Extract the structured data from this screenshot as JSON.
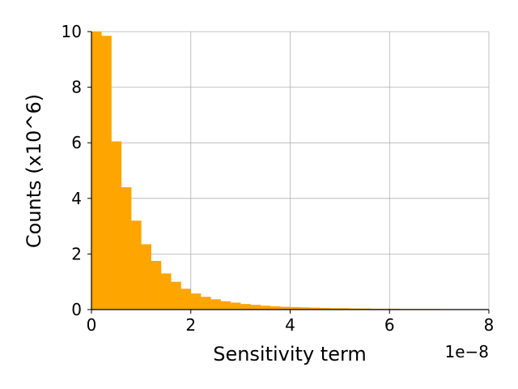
{
  "chart_data": {
    "type": "bar",
    "title": "",
    "xlabel": "Sensitivity term",
    "ylabel": "Counts (x10^6)",
    "x_offset_label": "1e−8",
    "xlim": [
      0,
      8
    ],
    "ylim": [
      0,
      10
    ],
    "x_ticks": [
      0,
      2,
      4,
      6,
      8
    ],
    "y_ticks": [
      0,
      2,
      4,
      6,
      8,
      10
    ],
    "x_tick_labels": [
      "0",
      "2",
      "4",
      "6",
      "8"
    ],
    "y_tick_labels": [
      "0",
      "2",
      "4",
      "6",
      "8",
      "10"
    ],
    "grid": true,
    "bar_color": "#FFA500",
    "bin_width": 0.2,
    "bin_starts": [
      0.0,
      0.2,
      0.4,
      0.6,
      0.8,
      1.0,
      1.2,
      1.4,
      1.6,
      1.8,
      2.0,
      2.2,
      2.4,
      2.6,
      2.8,
      3.0,
      3.2,
      3.4,
      3.6,
      3.8,
      4.0,
      4.2,
      4.4,
      4.6,
      4.8,
      5.0,
      5.2,
      5.4,
      5.6,
      5.8,
      6.0,
      6.2,
      6.4,
      6.6,
      6.8,
      7.0,
      7.2
    ],
    "values": [
      10.0,
      9.85,
      6.05,
      4.4,
      3.2,
      2.35,
      1.75,
      1.3,
      1.0,
      0.75,
      0.58,
      0.46,
      0.37,
      0.3,
      0.25,
      0.2,
      0.17,
      0.14,
      0.12,
      0.1,
      0.09,
      0.08,
      0.07,
      0.06,
      0.05,
      0.05,
      0.04,
      0.04,
      0.03,
      0.03,
      0.03,
      0.02,
      0.02,
      0.02,
      0.02,
      0.01,
      0.01
    ]
  }
}
